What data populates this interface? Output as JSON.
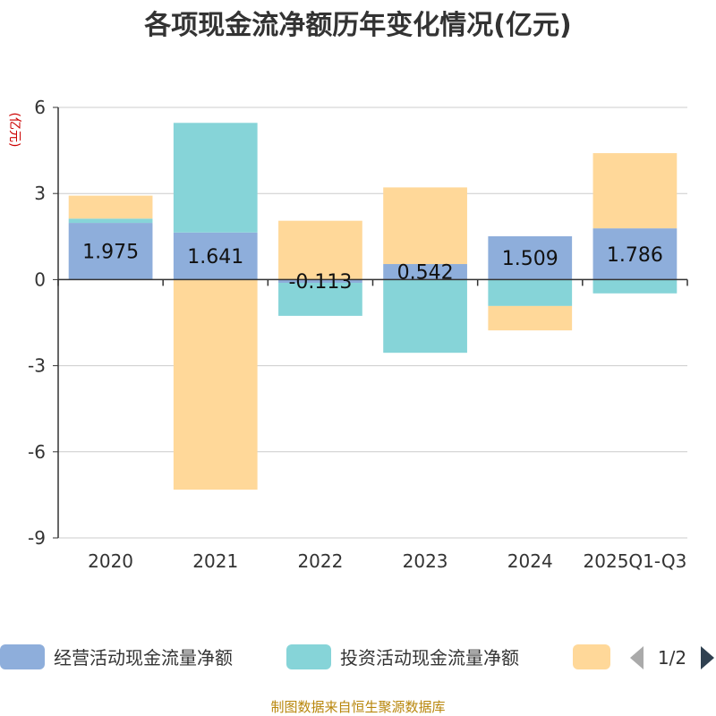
{
  "chart_data": {
    "type": "bar",
    "stacked": true,
    "title": "各项现金流净额历年变化情况(亿元)",
    "ylabel": "(亿元)",
    "xlabel": "",
    "categories": [
      "2020",
      "2021",
      "2022",
      "2023",
      "2024",
      "2025Q1-Q3"
    ],
    "ylim": [
      -9,
      6
    ],
    "yticks": [
      6,
      3,
      0,
      -3,
      -6,
      -9
    ],
    "grid": true,
    "series": [
      {
        "name": "经营活动现金流量净额",
        "color": "#8eaedb",
        "values": [
          1.975,
          1.641,
          -0.113,
          0.542,
          1.509,
          1.786
        ],
        "labels": [
          "1.975",
          "1.641",
          "-0.113",
          "0.542",
          "1.509",
          "1.786"
        ]
      },
      {
        "name": "投资活动现金流量净额",
        "color": "#86d4d8",
        "values": [
          0.15,
          3.82,
          -1.15,
          -2.55,
          -0.92,
          -0.48
        ]
      },
      {
        "name": "",
        "color": "#ffd899",
        "values": [
          0.8,
          -7.32,
          2.05,
          2.67,
          -0.85,
          2.62
        ]
      }
    ],
    "legend": {
      "position": "bottom",
      "page": "1/2"
    }
  },
  "source": "制图数据来自恒生聚源数据库"
}
